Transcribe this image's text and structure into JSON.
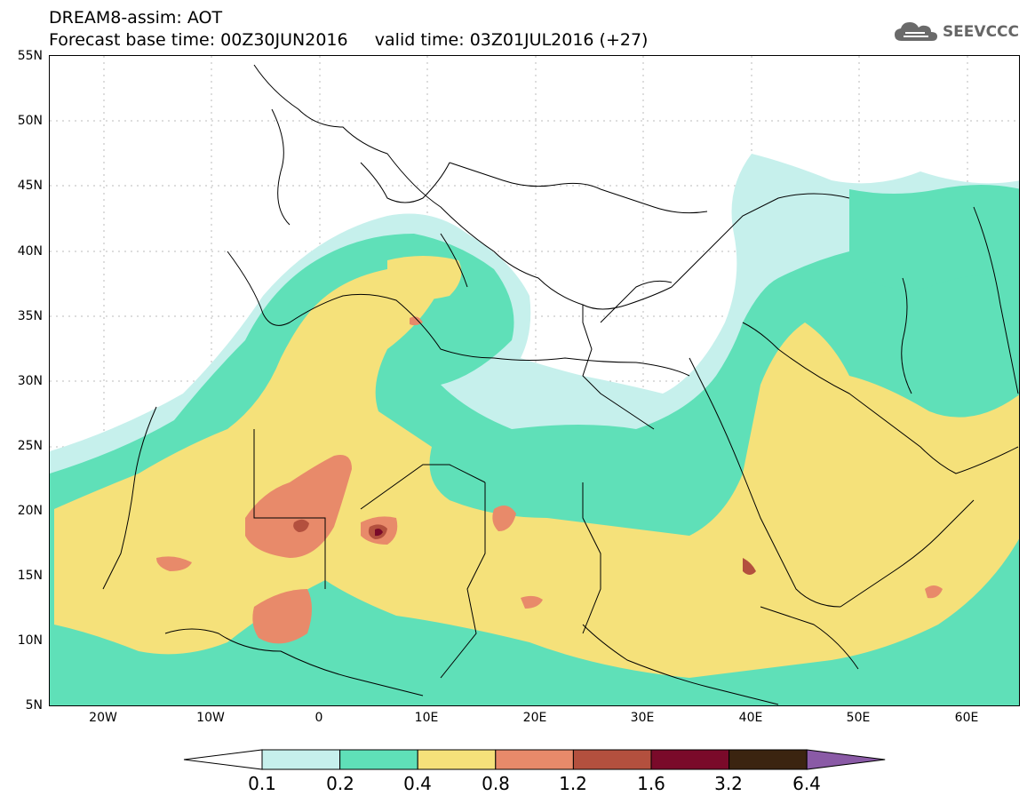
{
  "title": {
    "line1": "DREAM8-assim: AOT",
    "line2": "Forecast base time: 00Z30JUN2016     valid time: 03Z01JUL2016 (+27)"
  },
  "logo": {
    "text": "SEEVCCC",
    "icon": "cloud-icon"
  },
  "map": {
    "lat_labels": [
      "55N",
      "50N",
      "45N",
      "40N",
      "35N",
      "30N",
      "25N",
      "20N",
      "15N",
      "10N",
      "5N"
    ],
    "lon_labels": [
      "20W",
      "10W",
      "0",
      "10E",
      "20E",
      "30E",
      "40E",
      "50E",
      "60E"
    ],
    "extent": {
      "lon": [
        -25,
        65
      ],
      "lat": [
        5,
        55
      ]
    }
  },
  "legend": {
    "levels": [
      "0.1",
      "0.2",
      "0.4",
      "0.8",
      "1.2",
      "1.6",
      "3.2",
      "6.4"
    ],
    "colors": [
      "#c6f0ec",
      "#5fe0b8",
      "#f5e17a",
      "#e88a6a",
      "#b3503e",
      "#7a0a2a",
      "#3b2410",
      "#8a5aa6"
    ]
  },
  "colors": {
    "level1": "#c6f0ec",
    "level2": "#5fe0b8",
    "level3": "#f5e17a",
    "level4": "#e88a6a",
    "level5": "#b3503e",
    "level6": "#7a0a2a"
  }
}
